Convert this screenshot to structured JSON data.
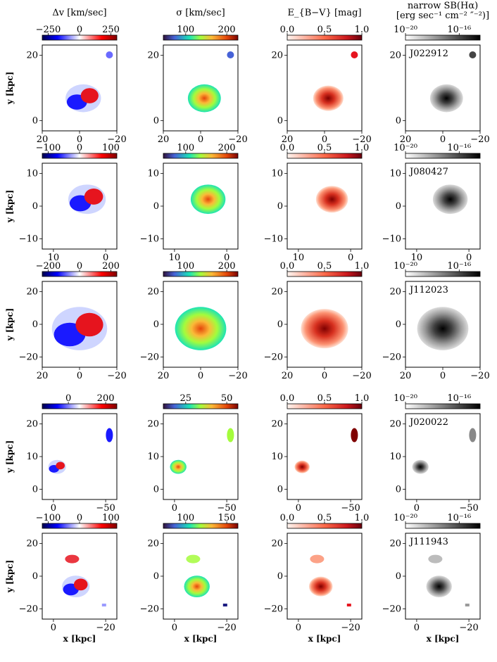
{
  "figure": {
    "column_headers": {
      "velocity": "Δv [km/sec]",
      "dispersion": "σ [km/sec]",
      "extinction": "E_{B−V} [mag]",
      "surface_brightness_line1": "narrow SB(Hα)",
      "surface_brightness_line2": "[erg sec⁻¹ cm⁻² ″⁻²)]"
    },
    "axis_labels": {
      "y": "y [kpc]",
      "x": "x [kpc]"
    },
    "colors": {
      "frame": "#000000",
      "blue": "#1a1aff",
      "red": "#e6141e",
      "dark_red": "#7f0000",
      "gray": "#808080"
    },
    "rows": [
      {
        "object": "J022912",
        "velocity_ticks": [
          "−250",
          "0",
          "250"
        ],
        "dispersion_ticks": [
          "100",
          "200"
        ],
        "extinction_ticks": [
          "0.0",
          "0.5",
          "1.0"
        ],
        "sb_ticks": [
          "10⁻²⁰",
          "10⁻¹⁶"
        ],
        "x_ticks": [
          "20",
          "0",
          "−20"
        ],
        "y_ticks": [
          "20",
          "0"
        ],
        "show_x_title": false
      },
      {
        "object": "J080427",
        "velocity_ticks": [
          "−100",
          "0",
          "100"
        ],
        "dispersion_ticks": [
          "100",
          "200"
        ],
        "extinction_ticks": [
          "0.0",
          "0.5",
          "1.0"
        ],
        "sb_ticks": [
          "10⁻²⁰",
          "10⁻¹⁶"
        ],
        "x_ticks": [
          "10",
          "0"
        ],
        "y_ticks": [
          "10",
          "0",
          "−10"
        ],
        "show_x_title": false
      },
      {
        "object": "J112023",
        "velocity_ticks": [
          "−200",
          "0",
          "200"
        ],
        "dispersion_ticks": [
          "100",
          "200"
        ],
        "extinction_ticks": [
          "0.0",
          "0.5",
          "1.0"
        ],
        "sb_ticks": [
          "10⁻²⁰",
          "10⁻¹⁶"
        ],
        "x_ticks": [
          "20",
          "0",
          "−20"
        ],
        "y_ticks": [
          "20",
          "0",
          "−20"
        ],
        "show_x_title": false
      },
      {
        "object": "J020022",
        "velocity_ticks": [
          "0",
          "200"
        ],
        "dispersion_ticks": [
          "25",
          "50"
        ],
        "extinction_ticks": [
          "0.0",
          "0.5",
          "1.0"
        ],
        "sb_ticks": [
          "10⁻²⁰",
          "10⁻¹⁶"
        ],
        "x_ticks": [
          "0",
          "−50"
        ],
        "y_ticks": [
          "20",
          "10",
          "0"
        ],
        "show_x_title": false
      },
      {
        "object": "J111943",
        "velocity_ticks": [
          "−100",
          "0",
          "100"
        ],
        "dispersion_ticks": [
          "100",
          "150"
        ],
        "extinction_ticks": [
          "0.0",
          "0.5",
          "1.0"
        ],
        "sb_ticks": [
          "10⁻²⁰",
          "10⁻¹⁶"
        ],
        "x_ticks": [
          "0",
          "−20"
        ],
        "y_ticks": [
          "20",
          "0",
          "−20"
        ],
        "show_x_title": true
      }
    ]
  }
}
